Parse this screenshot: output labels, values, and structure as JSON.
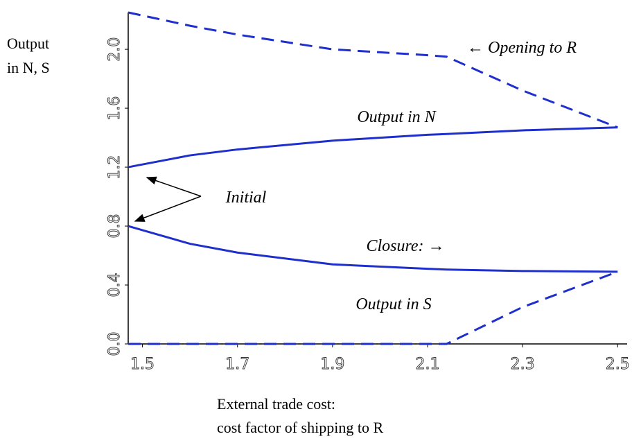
{
  "chart_data": {
    "type": "line",
    "y_label": [
      "Output",
      "in N, S"
    ],
    "x_label": [
      "External trade cost:",
      "cost factor of shipping to R"
    ],
    "x": [
      1.47,
      1.6,
      1.7,
      1.9,
      2.1,
      2.14,
      2.3,
      2.5
    ],
    "series": [
      {
        "name": "Output in N",
        "color": "#1f2fcc",
        "dashed": false,
        "values": [
          1.2,
          1.28,
          1.32,
          1.38,
          1.42,
          1.425,
          1.45,
          1.47
        ]
      },
      {
        "name": "Output in S",
        "color": "#1f2fcc",
        "dashed": false,
        "values": [
          0.8,
          0.68,
          0.62,
          0.54,
          0.51,
          0.505,
          0.495,
          0.49
        ]
      },
      {
        "name": "Opening to R",
        "color": "#1f2fcc",
        "dashed": true,
        "values": [
          2.25,
          2.16,
          2.1,
          2.0,
          1.96,
          1.95,
          1.72,
          1.47
        ]
      },
      {
        "name": "Closure",
        "color": "#1f2fcc",
        "dashed": true,
        "values": [
          0,
          0,
          0,
          0,
          0,
          0,
          0.25,
          0.49
        ]
      }
    ],
    "annotations": [
      "← Opening to R",
      "Output in N",
      "Initial",
      "Closure: →",
      "Output in S"
    ],
    "xlim": [
      1.47,
      2.52
    ],
    "ylim": [
      0,
      2.25
    ],
    "xticks": [
      1.5,
      1.7,
      1.9,
      2.1,
      2.3,
      2.5
    ],
    "yticks": [
      {
        "value": 0,
        "label": "0.0"
      },
      0.4,
      0.8,
      1.2,
      1.6,
      {
        "value": 2,
        "label": "2.0"
      }
    ]
  }
}
